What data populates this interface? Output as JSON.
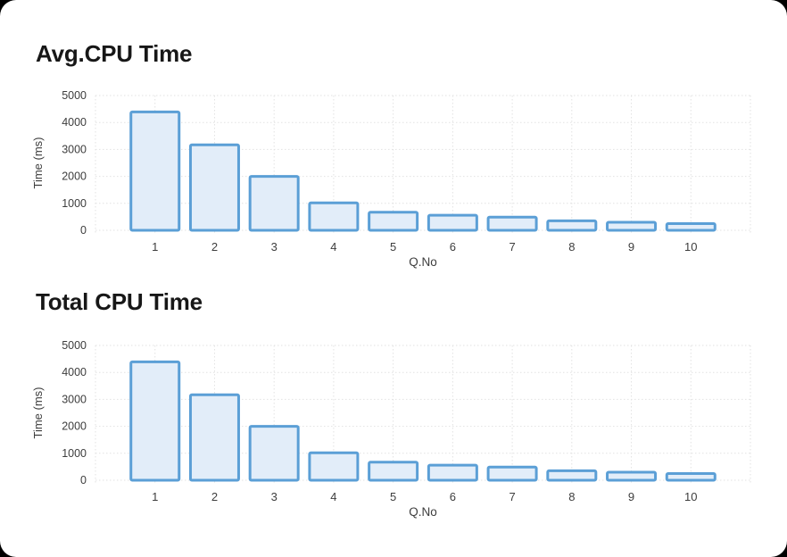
{
  "page": {
    "background": "#ffffff",
    "outside_background": "#000000"
  },
  "chart_data": [
    {
      "type": "bar",
      "title": "Avg.CPU Time",
      "categories": [
        "1",
        "2",
        "3",
        "4",
        "5",
        "6",
        "7",
        "8",
        "9",
        "10"
      ],
      "values": [
        4390,
        3170,
        2000,
        1020,
        670,
        560,
        490,
        350,
        300,
        250
      ],
      "xlabel": "Q.No",
      "ylabel": "Time (ms)",
      "ylim": [
        0,
        5000
      ],
      "yticks": [
        0,
        1000,
        2000,
        3000,
        4000,
        5000
      ],
      "grid": "dotted-both-axes",
      "legend": "none",
      "bar_fill": "#e2edf9",
      "bar_stroke": "#5b9fd6",
      "gridline_color": "#e2e2e2",
      "label_color": "#3d3d3d"
    },
    {
      "type": "bar",
      "title": "Total CPU Time",
      "categories": [
        "1",
        "2",
        "3",
        "4",
        "5",
        "6",
        "7",
        "8",
        "9",
        "10"
      ],
      "values": [
        4390,
        3170,
        2000,
        1020,
        670,
        560,
        490,
        350,
        300,
        250
      ],
      "xlabel": "Q.No",
      "ylabel": "Time (ms)",
      "ylim": [
        0,
        5000
      ],
      "yticks": [
        0,
        1000,
        2000,
        3000,
        4000,
        5000
      ],
      "grid": "dotted-both-axes",
      "legend": "none",
      "bar_fill": "#e2edf9",
      "bar_stroke": "#5b9fd6",
      "gridline_color": "#e2e2e2",
      "label_color": "#3d3d3d"
    }
  ]
}
